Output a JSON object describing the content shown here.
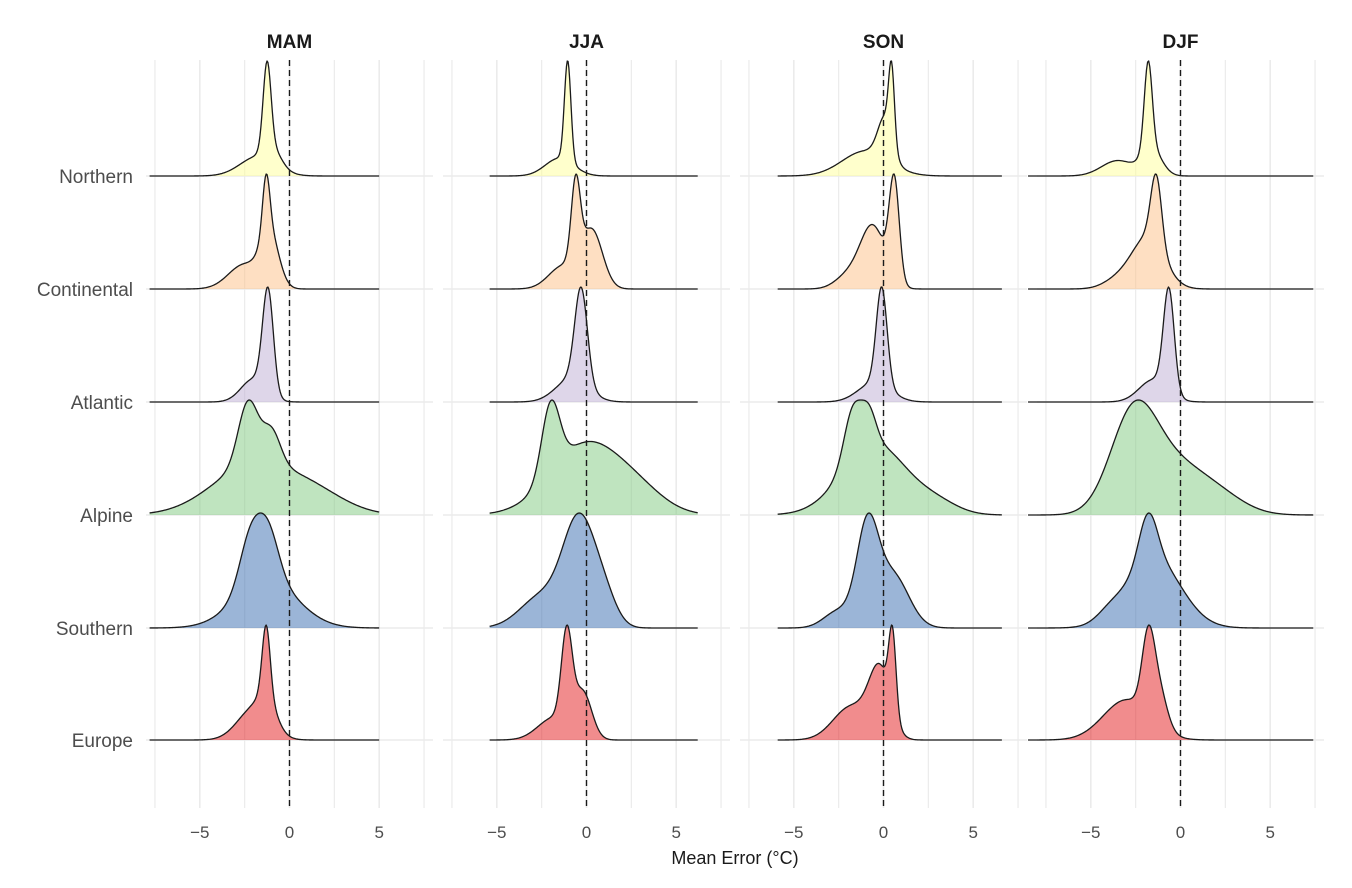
{
  "chart_data": {
    "type": "ridgeline",
    "xlabel": "Mean Error (°C)",
    "ylabel": "",
    "xlim": [
      -8,
      8
    ],
    "x_ticks": [
      -5,
      0,
      5
    ],
    "x_tick_labels": [
      "−5",
      "0",
      "5"
    ],
    "reference_line": 0,
    "grid": true,
    "panels": [
      {
        "title": "MAM",
        "data_range": [
          -7.8,
          5.0
        ],
        "curves": {
          "Northern": [
            {
              "mu": -1.25,
              "s": 0.22,
              "w": 0.36
            },
            {
              "mu": -1.75,
              "s": 1.0,
              "w": 0.08
            },
            {
              "mu": -0.9,
              "s": 0.45,
              "w": 0.06
            }
          ],
          "Continental": [
            {
              "mu": -1.3,
              "s": 0.2,
              "w": 0.32
            },
            {
              "mu": -1.1,
              "s": 0.5,
              "w": 0.3
            },
            {
              "mu": -2.5,
              "s": 0.9,
              "w": 0.14
            }
          ],
          "Atlantic": [
            {
              "mu": -1.2,
              "s": 0.3,
              "w": 0.45
            },
            {
              "mu": -2.0,
              "s": 0.7,
              "w": 0.1
            }
          ],
          "Alpine": [
            {
              "mu": -2.3,
              "s": 0.55,
              "w": 0.38
            },
            {
              "mu": -1.0,
              "s": 0.5,
              "w": 0.2
            },
            {
              "mu": -2.0,
              "s": 2.3,
              "w": 0.3
            },
            {
              "mu": 1.5,
              "s": 1.8,
              "w": 0.1
            }
          ],
          "Southern": [
            {
              "mu": -2.2,
              "s": 0.6,
              "w": 0.3
            },
            {
              "mu": -1.2,
              "s": 0.6,
              "w": 0.3
            },
            {
              "mu": -1.3,
              "s": 1.7,
              "w": 0.3
            }
          ],
          "Europe": [
            {
              "mu": -1.3,
              "s": 0.22,
              "w": 0.45
            },
            {
              "mu": -2.0,
              "s": 0.9,
              "w": 0.2
            },
            {
              "mu": -1.2,
              "s": 0.5,
              "w": 0.15
            }
          ]
        }
      },
      {
        "title": "JJA",
        "data_range": [
          -5.4,
          6.2
        ],
        "curves": {
          "Northern": [
            {
              "mu": -1.05,
              "s": 0.18,
              "w": 0.45
            },
            {
              "mu": -1.5,
              "s": 0.8,
              "w": 0.08
            }
          ],
          "Continental": [
            {
              "mu": -0.6,
              "s": 0.25,
              "w": 0.35
            },
            {
              "mu": 0.3,
              "s": 0.6,
              "w": 0.25
            },
            {
              "mu": -1.3,
              "s": 0.8,
              "w": 0.1
            }
          ],
          "Atlantic": [
            {
              "mu": -0.3,
              "s": 0.35,
              "w": 0.4
            },
            {
              "mu": -0.8,
              "s": 0.9,
              "w": 0.1
            }
          ],
          "Alpine": [
            {
              "mu": -2.0,
              "s": 0.5,
              "w": 0.35
            },
            {
              "mu": 0.0,
              "s": 2.0,
              "w": 0.35
            },
            {
              "mu": 3.0,
              "s": 1.5,
              "w": 0.08
            }
          ],
          "Southern": [
            {
              "mu": -0.4,
              "s": 0.9,
              "w": 0.5
            },
            {
              "mu": -2.5,
              "s": 1.2,
              "w": 0.15
            },
            {
              "mu": 1.0,
              "s": 0.7,
              "w": 0.12
            }
          ],
          "Europe": [
            {
              "mu": -1.1,
              "s": 0.3,
              "w": 0.4
            },
            {
              "mu": -0.2,
              "s": 0.5,
              "w": 0.2
            },
            {
              "mu": -1.8,
              "s": 0.9,
              "w": 0.1
            }
          ]
        }
      },
      {
        "title": "SON",
        "data_range": [
          -5.9,
          6.6
        ],
        "curves": {
          "Northern": [
            {
              "mu": 0.45,
              "s": 0.16,
              "w": 0.35
            },
            {
              "mu": 0.1,
              "s": 0.4,
              "w": 0.2
            },
            {
              "mu": -1.0,
              "s": 1.3,
              "w": 0.12
            }
          ],
          "Continental": [
            {
              "mu": 0.6,
              "s": 0.28,
              "w": 0.4
            },
            {
              "mu": -0.6,
              "s": 0.7,
              "w": 0.25
            },
            {
              "mu": -2.0,
              "s": 0.7,
              "w": 0.05
            }
          ],
          "Atlantic": [
            {
              "mu": -0.1,
              "s": 0.3,
              "w": 0.5
            },
            {
              "mu": -0.5,
              "s": 0.9,
              "w": 0.1
            }
          ],
          "Alpine": [
            {
              "mu": -1.7,
              "s": 0.5,
              "w": 0.25
            },
            {
              "mu": -0.8,
              "s": 0.4,
              "w": 0.15
            },
            {
              "mu": -0.5,
              "s": 1.8,
              "w": 0.35
            },
            {
              "mu": 3.0,
              "s": 1.2,
              "w": 0.05
            }
          ],
          "Southern": [
            {
              "mu": -0.9,
              "s": 0.6,
              "w": 0.45
            },
            {
              "mu": 0.5,
              "s": 0.9,
              "w": 0.25
            },
            {
              "mu": -2.5,
              "s": 0.8,
              "w": 0.08
            }
          ],
          "Europe": [
            {
              "mu": 0.5,
              "s": 0.2,
              "w": 0.35
            },
            {
              "mu": -0.2,
              "s": 0.6,
              "w": 0.3
            },
            {
              "mu": -1.8,
              "s": 1.0,
              "w": 0.15
            }
          ]
        }
      },
      {
        "title": "DJF",
        "data_range": [
          -8.5,
          7.4
        ],
        "curves": {
          "Northern": [
            {
              "mu": -1.8,
              "s": 0.22,
              "w": 0.4
            },
            {
              "mu": -1.6,
              "s": 0.55,
              "w": 0.12
            },
            {
              "mu": -3.5,
              "s": 0.9,
              "w": 0.07
            }
          ],
          "Continental": [
            {
              "mu": -1.35,
              "s": 0.3,
              "w": 0.4
            },
            {
              "mu": -1.8,
              "s": 0.9,
              "w": 0.3
            },
            {
              "mu": -3.5,
              "s": 0.8,
              "w": 0.05
            }
          ],
          "Atlantic": [
            {
              "mu": -0.65,
              "s": 0.3,
              "w": 0.55
            },
            {
              "mu": -1.5,
              "s": 0.8,
              "w": 0.12
            }
          ],
          "Alpine": [
            {
              "mu": -2.6,
              "s": 1.3,
              "w": 0.5
            },
            {
              "mu": -0.3,
              "s": 1.5,
              "w": 0.2
            },
            {
              "mu": 2.0,
              "s": 1.5,
              "w": 0.1
            }
          ],
          "Southern": [
            {
              "mu": -1.8,
              "s": 0.5,
              "w": 0.3
            },
            {
              "mu": -1.5,
              "s": 1.5,
              "w": 0.45
            },
            {
              "mu": -4.0,
              "s": 0.7,
              "w": 0.05
            }
          ],
          "Europe": [
            {
              "mu": -1.8,
              "s": 0.35,
              "w": 0.4
            },
            {
              "mu": -1.2,
              "s": 0.45,
              "w": 0.2
            },
            {
              "mu": -3.0,
              "s": 1.3,
              "w": 0.22
            }
          ]
        }
      }
    ],
    "series": [
      {
        "name": "Northern",
        "color": "#FFFF99"
      },
      {
        "name": "Continental",
        "color": "#FDC086"
      },
      {
        "name": "Atlantic",
        "color": "#BEAED4"
      },
      {
        "name": "Alpine",
        "color": "#7FC97F"
      },
      {
        "name": "Southern",
        "color": "#386CB0"
      },
      {
        "name": "Europe",
        "color": "#E41A1C"
      }
    ],
    "fill_alpha": 0.5,
    "outline_color": "#1a1a1a",
    "grid_color": "#ebebeb"
  }
}
